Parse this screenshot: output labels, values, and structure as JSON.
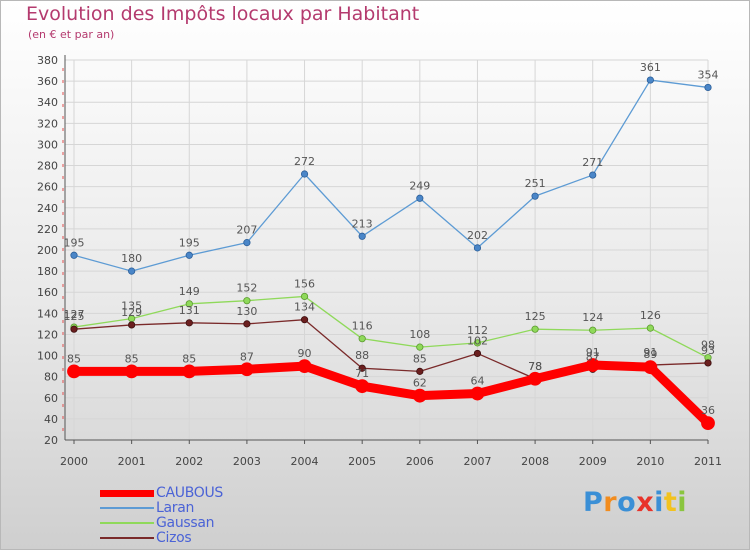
{
  "title": "Evolution des Impôts locaux par Habitant",
  "subtitle": "(en € et par an)",
  "logo_text": "Proxiti",
  "chart_data": {
    "type": "line",
    "categories": [
      "2000",
      "2001",
      "2002",
      "2003",
      "2004",
      "2005",
      "2006",
      "2007",
      "2008",
      "2009",
      "2010",
      "2011"
    ],
    "yticks": [
      20,
      40,
      60,
      80,
      100,
      120,
      140,
      160,
      180,
      200,
      220,
      240,
      260,
      280,
      300,
      320,
      340,
      360,
      380
    ],
    "ylim": [
      20,
      380
    ],
    "grid": true,
    "legend_position": "bottom-left",
    "series": [
      {
        "name": "CAUBOUS",
        "color": "#ff0000",
        "values": [
          85,
          85,
          85,
          87,
          90,
          71,
          62,
          64,
          78,
          91,
          89,
          36
        ]
      },
      {
        "name": "Laran",
        "color": "#5d9bd4",
        "values": [
          195,
          180,
          195,
          207,
          272,
          213,
          249,
          202,
          251,
          271,
          361,
          354
        ]
      },
      {
        "name": "Gaussan",
        "color": "#8fd95a",
        "values": [
          127,
          135,
          149,
          152,
          156,
          116,
          108,
          112,
          125,
          124,
          126,
          98
        ]
      },
      {
        "name": "Cizos",
        "color": "#7a2a2a",
        "values": [
          125,
          129,
          131,
          130,
          134,
          88,
          85,
          102,
          78,
          87,
          91,
          93
        ]
      }
    ],
    "labels": {
      "CAUBOUS": [
        "85",
        "85",
        "85",
        "87",
        "90",
        "71",
        "62",
        "64",
        "78",
        "91",
        "89",
        "36"
      ],
      "Laran": [
        "195",
        "180",
        "195",
        "207",
        "272",
        "213",
        "249",
        "202",
        "251",
        "271",
        "361",
        "354"
      ],
      "Gaussan": [
        "127",
        "135",
        "149",
        "152",
        "156",
        "116",
        "108",
        "112",
        "125",
        "124",
        "126",
        "98"
      ],
      "Cizos": [
        "125",
        "129",
        "131",
        "130",
        "134",
        "88",
        "85",
        "102",
        "78",
        "87",
        "91",
        "93"
      ]
    }
  }
}
